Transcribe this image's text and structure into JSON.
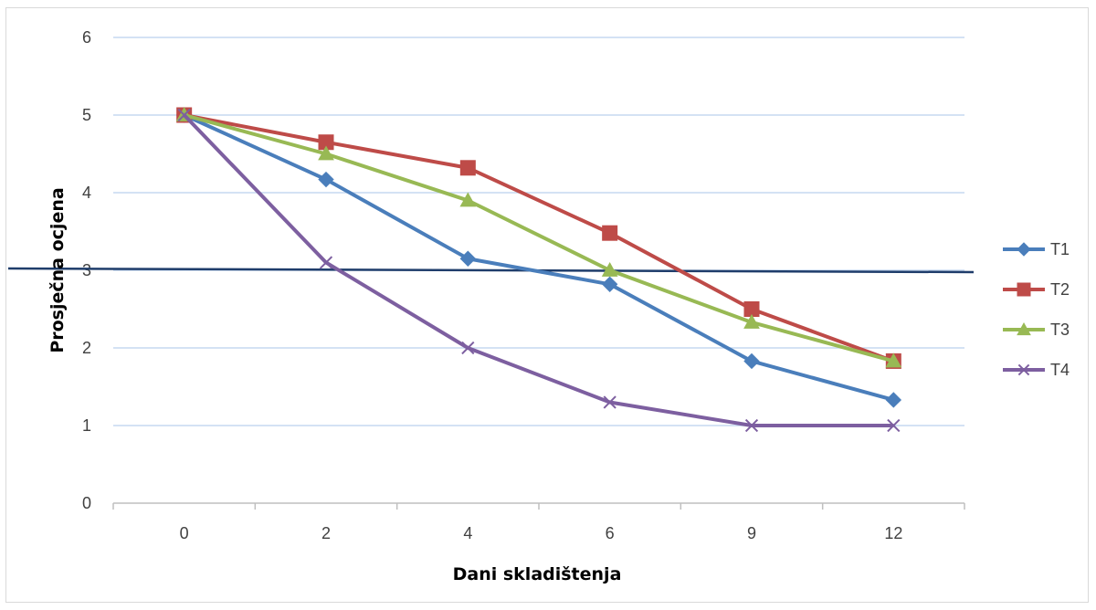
{
  "chart_data": {
    "type": "line",
    "categories": [
      "0",
      "2",
      "4",
      "6",
      "9",
      "12"
    ],
    "series": [
      {
        "name": "T1",
        "color": "#4a7ebb",
        "marker": "diamond",
        "values": [
          5.0,
          4.17,
          3.15,
          2.82,
          1.83,
          1.33
        ]
      },
      {
        "name": "T2",
        "color": "#be4b48",
        "marker": "square",
        "values": [
          5.0,
          4.65,
          4.32,
          3.48,
          2.5,
          1.83
        ]
      },
      {
        "name": "T3",
        "color": "#98b954",
        "marker": "triangle",
        "values": [
          5.0,
          4.5,
          3.9,
          3.0,
          2.33,
          1.83
        ]
      },
      {
        "name": "T4",
        "color": "#7d5fa0",
        "marker": "x",
        "values": [
          5.0,
          3.1,
          2.0,
          1.3,
          1.0,
          1.0
        ]
      }
    ],
    "reference_line": {
      "value": 3.0,
      "color": "#1f3d6b"
    },
    "xlabel": "Dani skladištenja",
    "ylabel": "Prosječna ocjena",
    "ylim": [
      0,
      6
    ],
    "yticks": [
      "0",
      "1",
      "2",
      "3",
      "4",
      "5",
      "6"
    ],
    "grid": true,
    "legend_position": "right"
  }
}
